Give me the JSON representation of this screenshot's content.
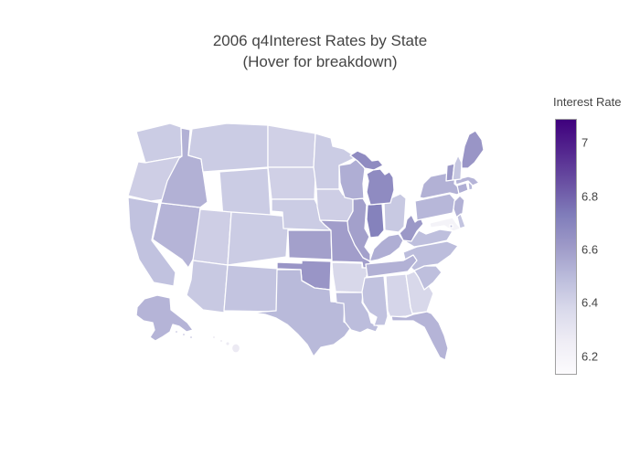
{
  "title": {
    "line1": "2006 q4Interest Rates by State",
    "line2": "(Hover for breakdown)"
  },
  "colors": {
    "background": "#ffffff",
    "title_text": "#444444",
    "tick_text": "#444444",
    "state_border": "#ffffff",
    "colorbar_outline": "#a0a0a0"
  },
  "chart_data": {
    "type": "choropleth",
    "scope": "usa",
    "title": "2006 q4Interest Rates by State (Hover for breakdown)",
    "colorscale_name": "Purples",
    "colorscale": [
      "#fcfbfd",
      "#efedf5",
      "#dadaeb",
      "#bcbddc",
      "#9e9ac8",
      "#807dba",
      "#6a51a3",
      "#54278f",
      "#3f007d"
    ],
    "range": {
      "min": 6.13,
      "max": 7.09
    },
    "colorbar": {
      "title": "Interest Rate",
      "ticks": [
        {
          "value": 7.0,
          "label": "7"
        },
        {
          "value": 6.8,
          "label": "6.8"
        },
        {
          "value": 6.6,
          "label": "6.6"
        },
        {
          "value": 6.4,
          "label": "6.4"
        },
        {
          "value": 6.2,
          "label": "6.2"
        }
      ]
    },
    "states": [
      {
        "code": "AK",
        "value": 6.52
      },
      {
        "code": "AL",
        "value": 6.39
      },
      {
        "code": "AR",
        "value": 6.38
      },
      {
        "code": "AZ",
        "value": 6.44
      },
      {
        "code": "CA",
        "value": 6.47
      },
      {
        "code": "CO",
        "value": 6.43
      },
      {
        "code": "CT",
        "value": 6.54
      },
      {
        "code": "DC",
        "value": 6.5
      },
      {
        "code": "DE",
        "value": 6.46
      },
      {
        "code": "FL",
        "value": 6.52
      },
      {
        "code": "GA",
        "value": 6.38
      },
      {
        "code": "HI",
        "value": 6.27
      },
      {
        "code": "IA",
        "value": 6.42
      },
      {
        "code": "ID",
        "value": 6.53
      },
      {
        "code": "IL",
        "value": 6.59
      },
      {
        "code": "IN",
        "value": 6.71
      },
      {
        "code": "KS",
        "value": 6.59
      },
      {
        "code": "KY",
        "value": 6.54
      },
      {
        "code": "LA",
        "value": 6.49
      },
      {
        "code": "MA",
        "value": 6.52
      },
      {
        "code": "MD",
        "value": 6.2
      },
      {
        "code": "ME",
        "value": 6.63
      },
      {
        "code": "MI",
        "value": 6.67
      },
      {
        "code": "MN",
        "value": 6.43
      },
      {
        "code": "MO",
        "value": 6.6
      },
      {
        "code": "MS",
        "value": 6.47
      },
      {
        "code": "MT",
        "value": 6.43
      },
      {
        "code": "NC",
        "value": 6.49
      },
      {
        "code": "ND",
        "value": 6.41
      },
      {
        "code": "NE",
        "value": 6.43
      },
      {
        "code": "NH",
        "value": 6.45
      },
      {
        "code": "NJ",
        "value": 6.53
      },
      {
        "code": "NM",
        "value": 6.46
      },
      {
        "code": "NV",
        "value": 6.52
      },
      {
        "code": "NY",
        "value": 6.53
      },
      {
        "code": "OH",
        "value": 6.44
      },
      {
        "code": "OK",
        "value": 6.63
      },
      {
        "code": "OR",
        "value": 6.42
      },
      {
        "code": "PA",
        "value": 6.51
      },
      {
        "code": "RI",
        "value": 6.5
      },
      {
        "code": "SC",
        "value": 6.48
      },
      {
        "code": "SD",
        "value": 6.41
      },
      {
        "code": "TN",
        "value": 6.53
      },
      {
        "code": "TX",
        "value": 6.5
      },
      {
        "code": "UT",
        "value": 6.42
      },
      {
        "code": "VA",
        "value": 6.48
      },
      {
        "code": "VT",
        "value": 6.62
      },
      {
        "code": "WA",
        "value": 6.43
      },
      {
        "code": "WI",
        "value": 6.54
      },
      {
        "code": "WV",
        "value": 6.62
      },
      {
        "code": "WY",
        "value": 6.43
      }
    ]
  }
}
